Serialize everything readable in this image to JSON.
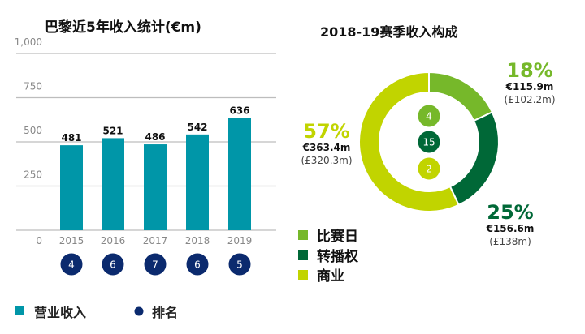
{
  "chart_data": [
    {
      "type": "bar",
      "title": "巴黎近5年收入统计(€m)",
      "categories": [
        "2015",
        "2016",
        "2017",
        "2018",
        "2019"
      ],
      "values": [
        481,
        521,
        486,
        542,
        636
      ],
      "ranks": [
        4,
        6,
        7,
        6,
        5
      ],
      "yticks": [
        "0",
        "250",
        "500",
        "750",
        "1,000"
      ],
      "ylim": [
        0,
        1000
      ],
      "grid": true,
      "legend": [
        {
          "label": "营业收入",
          "color": "#0096a8",
          "shape": "square"
        },
        {
          "label": "排名",
          "color": "#0b2a6e",
          "shape": "circle"
        }
      ],
      "legend_position": "bottom",
      "bar_color": "#0096a8",
      "rank_color": "#0b2a6e"
    },
    {
      "type": "pie",
      "title": "2018-19赛季收入构成",
      "donut": true,
      "slices": [
        {
          "name": "比赛日",
          "percent_label": "18%",
          "percent": 18,
          "eur": "€115.9m",
          "gbp": "(£102.2m)",
          "rank": "4",
          "color": "#76b82a"
        },
        {
          "name": "转播权",
          "percent_label": "25%",
          "percent": 25,
          "eur": "€156.6m",
          "gbp": "(£138m)",
          "rank": "15",
          "color": "#006837"
        },
        {
          "name": "商业",
          "percent_label": "57%",
          "percent": 57,
          "eur": "€363.4m",
          "gbp": "(£320.3m)",
          "rank": "2",
          "color": "#c1d400"
        }
      ],
      "legend_position": "bottom-left"
    }
  ]
}
